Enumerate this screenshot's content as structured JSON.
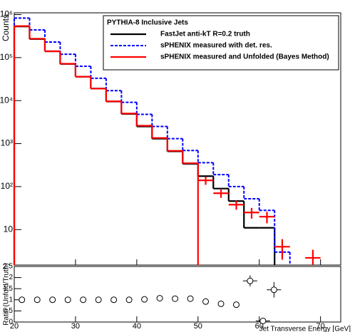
{
  "chart_data": [
    {
      "type": "histogram",
      "ylabel": "Counts",
      "legend_title": "PYTHIA-8 Inclusive Jets",
      "bins": [
        20,
        22.5,
        25,
        27.5,
        30,
        32.5,
        35,
        37.5,
        40,
        42.5,
        45,
        47.5,
        50,
        52.5,
        55,
        57.5,
        60,
        62.5,
        65,
        67.5,
        70,
        72.5
      ],
      "xlim": [
        20,
        73.3
      ],
      "xticks": [
        20,
        30,
        40,
        50,
        60,
        70
      ],
      "ylim": [
        1.5,
        1100000
      ],
      "log_y": true,
      "yticks": [
        10,
        {
          "value": 100,
          "label": "10²"
        },
        {
          "value": 1000,
          "label": "10³"
        },
        {
          "value": 10000,
          "label": "10⁴"
        },
        {
          "value": 100000,
          "label": "10⁵"
        },
        {
          "value": 1000000,
          "label": "10⁶"
        }
      ],
      "series": [
        {
          "name": "FastJet anti-kT R=0.2 truth",
          "color": "#000000",
          "style": "solid",
          "values": [
            530000,
            270000,
            140000,
            71000,
            36000,
            19000,
            9500,
            4900,
            2500,
            1300,
            660,
            340,
            175,
            90,
            46,
            11,
            11,
            null,
            null,
            null,
            null
          ]
        },
        {
          "name": "sPHENIX measured with det. res.",
          "color": "#0000ff",
          "style": "dashed",
          "values": [
            830000,
            440000,
            230000,
            120000,
            63000,
            33000,
            17000,
            9100,
            4800,
            2500,
            1300,
            690,
            360,
            190,
            100,
            52,
            28,
            3,
            null,
            null,
            null
          ]
        },
        {
          "name": "sPHENIX measured and Unfolded (Bayes Method)",
          "color": "#ff0000",
          "style": "solid",
          "values": [
            540000,
            275000,
            140000,
            72000,
            36000,
            19000,
            9600,
            5000,
            2600,
            1350,
            680,
            350,
            140,
            70,
            38,
            25,
            20,
            4,
            null,
            2.2,
            null
          ],
          "errors": [
            null,
            null,
            null,
            null,
            null,
            null,
            null,
            null,
            null,
            null,
            null,
            null,
            30,
            15,
            9,
            7,
            6,
            2,
            null,
            1.2,
            null
          ]
        }
      ]
    },
    {
      "type": "scatter",
      "ylabel": "Ratio (Unfold/Truth)",
      "xlabel": "Jet Transverse Energy [GeV]",
      "x": [
        21.25,
        23.75,
        26.25,
        28.75,
        31.25,
        33.75,
        36.25,
        38.75,
        41.25,
        43.75,
        46.25,
        48.75,
        51.25,
        53.75,
        56.25,
        58.5,
        60.6,
        62.4
      ],
      "values": [
        1,
        1,
        1,
        1,
        1,
        1,
        1,
        1,
        1.02,
        1.07,
        1.05,
        1.05,
        0.92,
        0.82,
        0.78,
        1.85,
        0.05,
        1.45
      ],
      "errors": [
        null,
        null,
        null,
        null,
        null,
        null,
        null,
        null,
        null,
        null,
        null,
        null,
        null,
        null,
        null,
        0.25,
        0.12,
        0.35
      ],
      "xlim": [
        20,
        73.3
      ],
      "xticks": [
        20,
        30,
        40,
        50,
        60,
        70
      ],
      "ylim": [
        0,
        2.5
      ],
      "yticks": [
        0,
        0.5,
        1,
        1.5,
        2,
        2.5
      ]
    }
  ]
}
